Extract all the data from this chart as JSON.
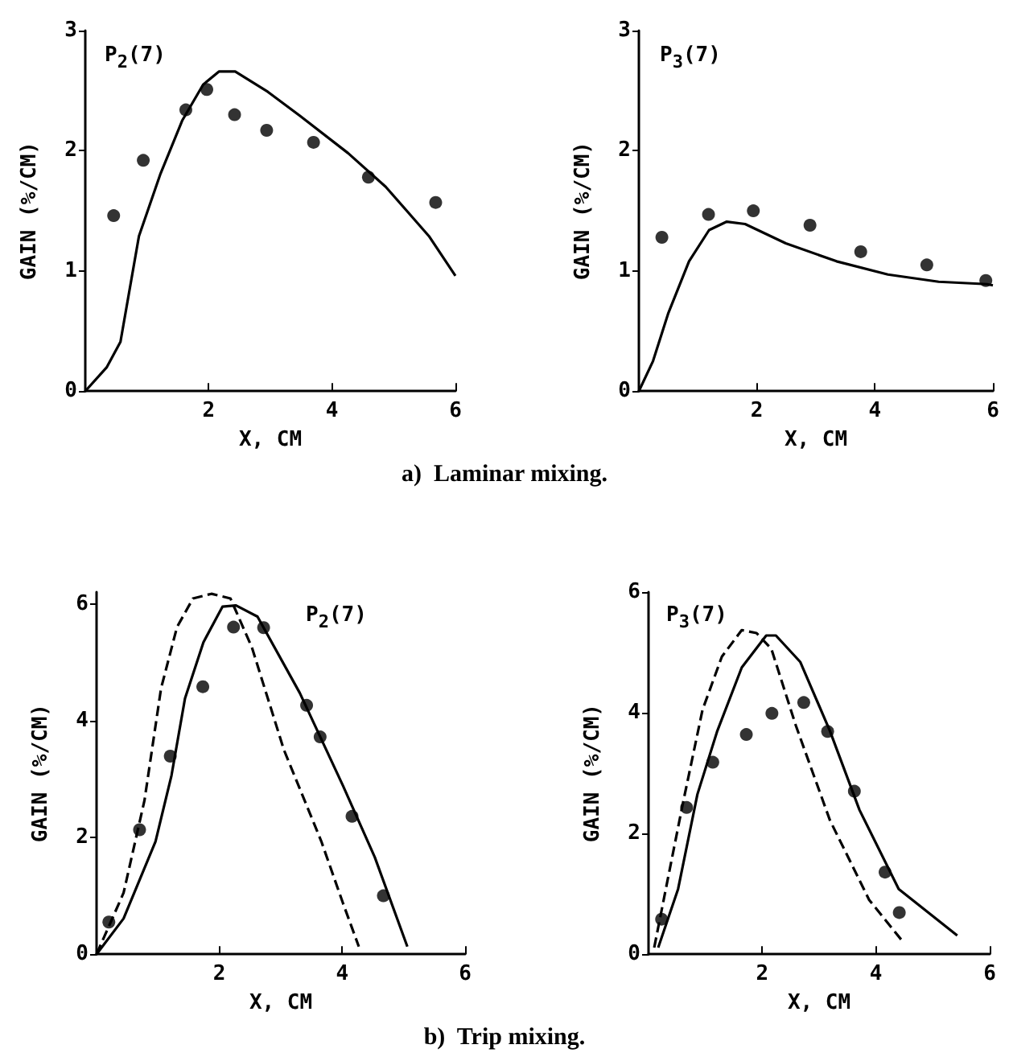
{
  "chart_data": [
    {
      "type": "scatter",
      "title": "P$_{2}$(7)",
      "xlabel": "X, CM",
      "ylabel": "GAIN (%/CM)",
      "annotations": [
        "a)  Laminar mixing."
      ],
      "xlim": [
        0,
        6
      ],
      "ylim": [
        0,
        3
      ],
      "xticks": [
        2,
        4,
        6
      ],
      "yticks": [
        0,
        1,
        2,
        3
      ],
      "grid": false,
      "series": [
        {
          "marker": "circle",
          "color": "#000000",
          "x": [
            0.46,
            0.94,
            1.63,
            1.97,
            2.42,
            2.94,
            3.7,
            4.59,
            5.68
          ],
          "values": [
            1.46,
            1.92,
            2.34,
            2.51,
            2.3,
            2.17,
            2.07,
            1.78,
            1.57
          ]
        },
        {
          "type": "line",
          "marker": "none",
          "color": "#000000",
          "line_style": "solid",
          "x": [
            0,
            0.35,
            0.57,
            0.87,
            1.22,
            1.57,
            1.91,
            2.17,
            2.43,
            2.96,
            3.48,
            4.26,
            4.87,
            5.57,
            6
          ],
          "values": [
            0,
            0.2,
            0.41,
            1.29,
            1.81,
            2.25,
            2.55,
            2.66,
            2.66,
            2.49,
            2.29,
            1.98,
            1.7,
            1.29,
            0.96
          ]
        }
      ]
    },
    {
      "type": "scatter",
      "title": "P$_{3}$(7)",
      "xlabel": "X, CM",
      "ylabel": "GAIN (%/CM)",
      "xlim": [
        0,
        6
      ],
      "ylim": [
        0,
        3
      ],
      "xticks": [
        2,
        4,
        6
      ],
      "yticks": [
        0,
        1,
        2,
        3
      ],
      "grid": false,
      "series": [
        {
          "marker": "circle",
          "color": "#000000",
          "x": [
            0.39,
            1.18,
            1.94,
            2.9,
            3.76,
            4.88,
            5.88
          ],
          "values": [
            1.28,
            1.47,
            1.5,
            1.38,
            1.16,
            1.05,
            0.92
          ]
        },
        {
          "type": "line",
          "marker": "none",
          "color": "#000000",
          "line_style": "solid",
          "x": [
            0,
            0.24,
            0.5,
            0.85,
            1.19,
            1.49,
            1.8,
            2.49,
            3.35,
            4.22,
            5.08,
            5.9,
            6
          ],
          "values": [
            0,
            0.25,
            0.65,
            1.08,
            1.34,
            1.41,
            1.39,
            1.23,
            1.08,
            0.97,
            0.91,
            0.89,
            0.88
          ]
        }
      ]
    },
    {
      "type": "scatter",
      "title": "P$_{2}$(7)",
      "xlabel": "X, CM",
      "ylabel": "GAIN (%/CM)",
      "annotations": [
        "b)  Trip mixing."
      ],
      "xlim": [
        0,
        6
      ],
      "ylim": [
        0,
        6.2
      ],
      "xticks": [
        2,
        4,
        6
      ],
      "yticks": [
        0,
        2,
        4,
        6
      ],
      "grid": false,
      "series": [
        {
          "marker": "circle",
          "color": "#000000",
          "x": [
            0.2,
            0.7,
            1.2,
            1.73,
            2.23,
            2.72,
            3.42,
            3.64,
            4.16,
            4.67
          ],
          "values": [
            0.55,
            2.13,
            3.39,
            4.58,
            5.6,
            5.59,
            4.26,
            3.72,
            2.36,
            1.0
          ]
        },
        {
          "type": "line",
          "marker": "none",
          "color": "#000000",
          "line_style": "solid",
          "x": [
            0,
            0.44,
            0.96,
            1.22,
            1.44,
            1.74,
            2.05,
            2.27,
            2.62,
            3.31,
            4.01,
            4.53,
            5.06
          ],
          "values": [
            0,
            0.61,
            1.93,
            3.06,
            4.38,
            5.34,
            5.95,
            5.97,
            5.78,
            4.47,
            2.89,
            1.66,
            0.13
          ]
        },
        {
          "type": "line",
          "marker": "none",
          "color": "#000000",
          "line_style": "dashed",
          "x": [
            0,
            0.44,
            0.78,
            1.05,
            1.31,
            1.57,
            1.87,
            2.18,
            2.53,
            3.05,
            3.66,
            4.01,
            4.27
          ],
          "values": [
            0,
            1.05,
            2.63,
            4.55,
            5.6,
            6.09,
            6.17,
            6.09,
            5.25,
            3.5,
            1.93,
            0.88,
            0.13
          ]
        }
      ]
    },
    {
      "type": "scatter",
      "title": "P$_{3}$(7)",
      "xlabel": "X, CM",
      "ylabel": "GAIN (%/CM)",
      "xlim": [
        0,
        6
      ],
      "ylim": [
        0,
        6
      ],
      "xticks": [
        2,
        4,
        6
      ],
      "yticks": [
        0,
        2,
        4,
        6
      ],
      "grid": false,
      "series": [
        {
          "marker": "circle",
          "color": "#000000",
          "x": [
            0.23,
            0.67,
            1.13,
            1.72,
            2.17,
            2.73,
            3.15,
            3.62,
            4.16,
            4.41
          ],
          "values": [
            0.58,
            2.43,
            3.18,
            3.64,
            3.99,
            4.17,
            3.69,
            2.7,
            1.36,
            0.69
          ]
        },
        {
          "type": "line",
          "marker": "none",
          "color": "#000000",
          "line_style": "solid",
          "x": [
            0.17,
            0.52,
            0.86,
            1.21,
            1.64,
            2.07,
            2.24,
            2.67,
            3.19,
            3.71,
            4.4,
            5.43
          ],
          "values": [
            0.11,
            1.08,
            2.65,
            3.7,
            4.75,
            5.28,
            5.28,
            4.84,
            3.7,
            2.39,
            1.08,
            0.31
          ]
        },
        {
          "type": "line",
          "marker": "none",
          "color": "#000000",
          "line_style": "dashed",
          "x": [
            0.1,
            0.34,
            0.6,
            0.95,
            1.29,
            1.64,
            1.9,
            2.16,
            2.59,
            3.19,
            3.88,
            4.48
          ],
          "values": [
            0.11,
            1.25,
            2.48,
            4.05,
            4.93,
            5.37,
            5.32,
            5.06,
            3.79,
            2.22,
            0.9,
            0.2
          ]
        }
      ]
    }
  ]
}
